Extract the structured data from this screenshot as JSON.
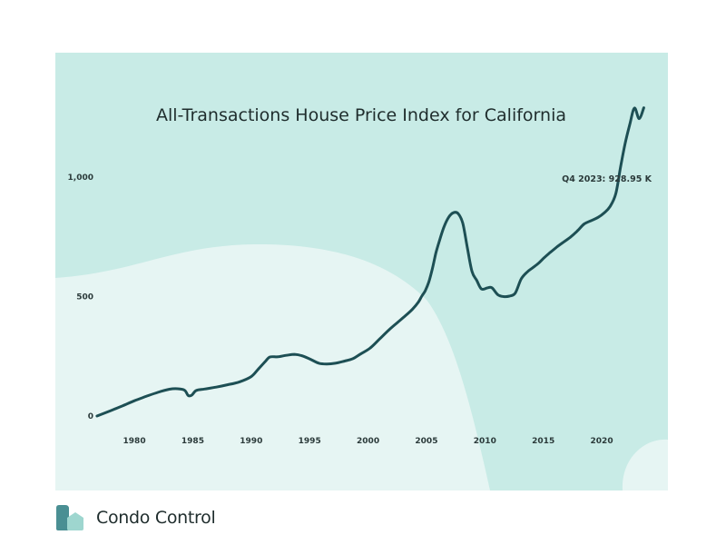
{
  "chart_data": {
    "type": "line",
    "title": "All-Transactions House Price Index for California",
    "xlabel": "",
    "ylabel": "",
    "xlim": [
      1976.5,
      2023.8
    ],
    "ylim": [
      0,
      1000
    ],
    "x_ticks": [
      1980,
      1985,
      1990,
      1995,
      2000,
      2005,
      2010,
      2015,
      2020
    ],
    "y_ticks": [
      0,
      500,
      1000
    ],
    "y_tick_labels": [
      "0",
      "500",
      "1,000"
    ],
    "grid": false,
    "legend": "none",
    "annotation": "Q4 2023: 928.95 K",
    "series": [
      {
        "x": [
          1976.8,
          1978,
          1979,
          1980,
          1981,
          1982,
          1983,
          1983.7,
          1984.3,
          1984.6,
          1984.9,
          1985.3,
          1986,
          1987,
          1988,
          1989,
          1990,
          1990.6,
          1991.2,
          1991.6,
          1992.3,
          1993,
          1993.7,
          1994.3,
          1995,
          1995.8,
          1996.5,
          1997.2,
          1998,
          1998.7,
          1999.4,
          2000.2,
          2001,
          2001.8,
          2002.5,
          2003.2,
          2003.8,
          2004.3,
          2004.6,
          2004.9,
          2005.2,
          2005.5,
          2005.8,
          2006.1,
          2006.5,
          2006.9,
          2007.3,
          2007.7,
          2008.1,
          2008.5,
          2008.9,
          2009.3,
          2009.7,
          2010.2,
          2010.6,
          2011.1,
          2011.6,
          2012.1,
          2012.6,
          2013.1,
          2013.6,
          2014.1,
          2014.6,
          2015.1,
          2015.6,
          2016.2,
          2016.7,
          2017.3,
          2017.9,
          2018.5,
          2019.2,
          2019.7,
          2020.2,
          2020.7,
          2021.2,
          2021.6,
          2022.0,
          2022.4,
          2022.8,
          2023.2,
          2023.6
        ],
        "values": [
          0,
          23,
          43,
          64,
          82,
          99,
          112,
          114,
          108,
          86,
          87,
          107,
          113,
          121,
          131,
          143,
          165,
          196,
          228,
          247,
          248,
          254,
          258,
          253,
          239,
          221,
          218,
          221,
          230,
          240,
          261,
          285,
          323,
          361,
          391,
          420,
          447,
          476,
          502,
          525,
          561,
          616,
          681,
          732,
          792,
          832,
          851,
          848,
          808,
          704,
          604,
          568,
          532,
          536,
          537,
          508,
          500,
          502,
          515,
          573,
          602,
          621,
          640,
          664,
          685,
          709,
          727,
          748,
          774,
          804,
          820,
          832,
          850,
          876,
          930,
          1040,
          1140,
          1221,
          1289,
          1245,
          1290
        ]
      }
    ]
  },
  "brand": {
    "name": "Condo Control"
  },
  "colors": {
    "panel_back": "#c8ebe6",
    "panel_front": "#e6f5f3",
    "line": "#1d4f54",
    "logo_dark": "#4a8f93",
    "logo_light": "#9ed6cf"
  }
}
